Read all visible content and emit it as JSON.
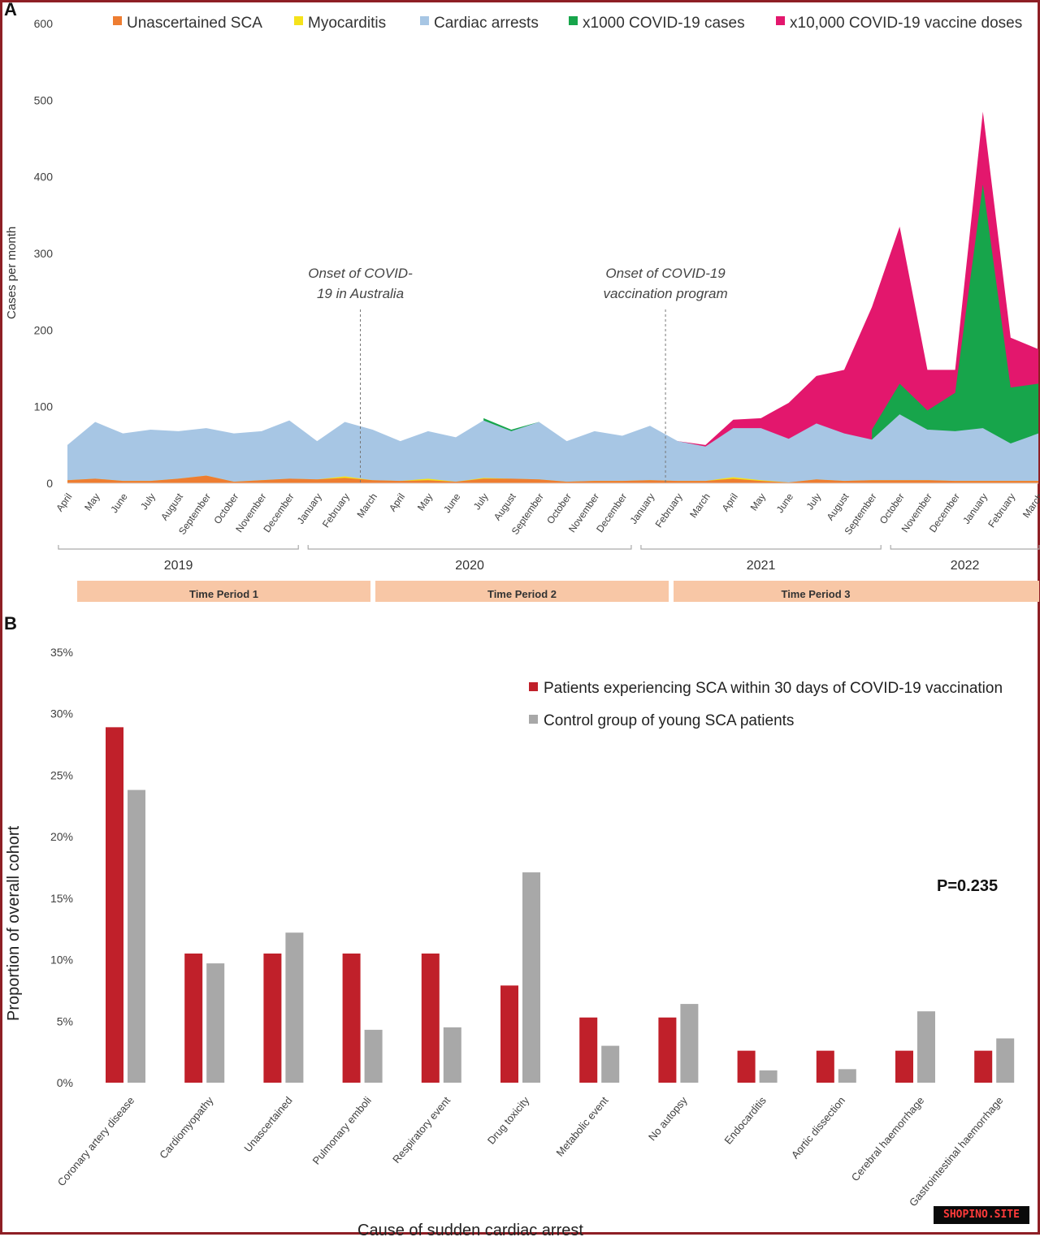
{
  "chart_data": [
    {
      "panel": "A",
      "type": "area",
      "ylabel": "Cases per month",
      "ylim": [
        0,
        600
      ],
      "yticks": [
        "0",
        "100",
        "200",
        "300",
        "400",
        "500",
        "600"
      ],
      "months": [
        "April",
        "May",
        "June",
        "July",
        "August",
        "September",
        "October",
        "November",
        "December",
        "January",
        "February",
        "March",
        "April",
        "May",
        "June",
        "July",
        "August",
        "September",
        "October",
        "November",
        "December",
        "January",
        "February",
        "March",
        "April",
        "May",
        "June",
        "July",
        "August",
        "September",
        "October",
        "November",
        "December",
        "January",
        "February",
        "March"
      ],
      "years": [
        "2019",
        "2020",
        "2021",
        "2022"
      ],
      "time_periods": [
        "Time Period 1",
        "Time Period 2",
        "Time Period 3"
      ],
      "legend": [
        "Unascertained SCA",
        "Myocarditis",
        "Cardiac arrests",
        "x1000 COVID-19 cases",
        "x10,000 COVID-19 vaccine doses"
      ],
      "colors": {
        "unascertained": "#ee7d31",
        "myocarditis": "#f5e21b",
        "cardiac_arrests": "#a7c6e4",
        "covid_cases": "#17a54b",
        "vaccine_doses": "#e3176d"
      },
      "annotations": [
        {
          "text1": "Onset of COVID-",
          "text2": "19 in Australia",
          "month_index": 11
        },
        {
          "text1": "Onset of COVID-19",
          "text2": "vaccination program",
          "month_index": 22
        }
      ],
      "series": [
        {
          "name": "x10,000 COVID-19 vaccine doses",
          "values": [
            null,
            null,
            null,
            null,
            null,
            null,
            null,
            null,
            null,
            null,
            null,
            null,
            null,
            null,
            null,
            null,
            null,
            null,
            null,
            null,
            null,
            null,
            55,
            50,
            83,
            85,
            105,
            140,
            148,
            230,
            335,
            148,
            148,
            485,
            190,
            175
          ]
        },
        {
          "name": "x1000 COVID-19 cases",
          "values": [
            null,
            null,
            null,
            null,
            null,
            null,
            null,
            null,
            null,
            null,
            null,
            null,
            null,
            null,
            null,
            85,
            70,
            80,
            null,
            null,
            null,
            null,
            null,
            null,
            null,
            null,
            null,
            null,
            null,
            70,
            130,
            95,
            118,
            390,
            125,
            130
          ]
        },
        {
          "name": "Cardiac arrests",
          "values": [
            50,
            80,
            65,
            70,
            68,
            72,
            65,
            68,
            82,
            55,
            80,
            70,
            55,
            68,
            60,
            82,
            68,
            80,
            55,
            68,
            62,
            75,
            55,
            48,
            72,
            72,
            58,
            78,
            65,
            57,
            90,
            70,
            68,
            72,
            52,
            65
          ]
        },
        {
          "name": "Unascertained SCA",
          "values": [
            4,
            6,
            3,
            3,
            6,
            10,
            2,
            4,
            6,
            5,
            7,
            4,
            3,
            4,
            2,
            6,
            6,
            5,
            2,
            3,
            3,
            4,
            3,
            3,
            6,
            3,
            1,
            5,
            3,
            4,
            4,
            4,
            3,
            3,
            3,
            3
          ]
        },
        {
          "name": "Myocarditis",
          "values": [
            0,
            0,
            0,
            0,
            0,
            0,
            0,
            0,
            0,
            0,
            2,
            0,
            0,
            2,
            0,
            1,
            0,
            0,
            0,
            0,
            0,
            0,
            0,
            0,
            2,
            1,
            0,
            0,
            0,
            0,
            0,
            0,
            0,
            0,
            0,
            0
          ]
        }
      ]
    },
    {
      "panel": "B",
      "type": "bar",
      "xlabel": "Cause of sudden cardiac arrest",
      "ylabel": "Proportion of overall cohort",
      "ylim": [
        0,
        35
      ],
      "yticks": [
        "0%",
        "5%",
        "10%",
        "15%",
        "20%",
        "25%",
        "30%",
        "35%"
      ],
      "categories": [
        "Coronary artery disease",
        "Cardiomyopathy",
        "Unascertained",
        "Pulmonary emboli",
        "Respiratory event",
        "Drug toxicity",
        "Metabolic event",
        "No autopsy",
        "Endocarditis",
        "Aortic dissection",
        "Cerebral haemorrhage",
        "Gastrointestinal haemorrhage"
      ],
      "series": [
        {
          "name": "Patients experiencing SCA within 30 days of COVID-19 vaccination",
          "color": "#c0202a",
          "values": [
            28.9,
            10.5,
            10.5,
            10.5,
            10.5,
            7.9,
            5.3,
            5.3,
            2.6,
            2.6,
            2.6,
            2.6
          ]
        },
        {
          "name": "Control group of young SCA patients",
          "color": "#a8a8a8",
          "values": [
            23.8,
            9.7,
            12.2,
            4.3,
            4.5,
            17.1,
            3.0,
            6.4,
            1.0,
            1.1,
            5.8,
            3.6
          ]
        }
      ],
      "annotation": "P=0.235"
    }
  ],
  "watermark": "SHOPINO.SITE"
}
